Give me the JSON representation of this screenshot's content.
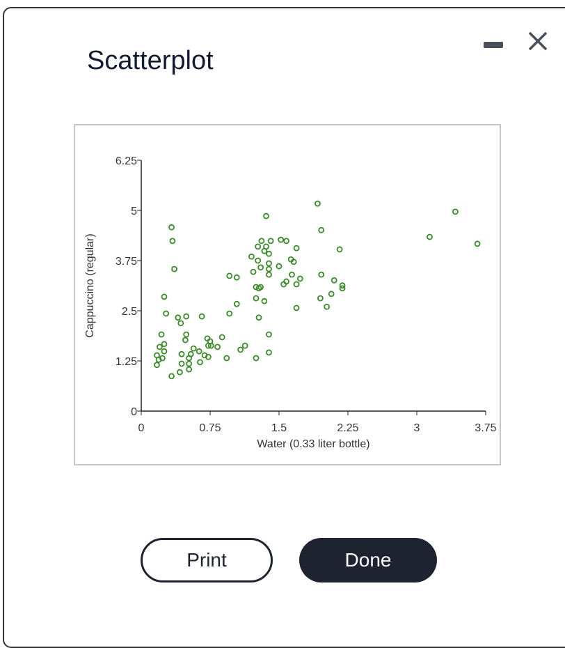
{
  "dialog": {
    "title": "Scatterplot",
    "buttons": [
      "Print",
      "Done"
    ]
  },
  "chart_data": {
    "type": "scatter",
    "x_label": "Water (0.33 liter bottle)",
    "y_label": "Cappuccino (regular)",
    "color": "#3a8a2a",
    "xlim": [
      0,
      3.75
    ],
    "ylim": [
      0,
      6.25
    ],
    "xticks": [
      0,
      0.75,
      1.5,
      2.25,
      3,
      3.75
    ],
    "yticks": [
      0,
      1.25,
      2.5,
      3.75,
      5,
      6.25
    ],
    "x": [
      0.33,
      0.34,
      0.36,
      0.25,
      0.27,
      0.4,
      0.43,
      0.49,
      0.66,
      0.22,
      0.2,
      0.25,
      0.25,
      0.17,
      0.23,
      0.19,
      0.17,
      0.33,
      0.42,
      0.44,
      0.44,
      0.49,
      0.48,
      0.52,
      0.52,
      0.52,
      0.54,
      0.57,
      0.63,
      0.64,
      0.69,
      0.72,
      0.73,
      0.75,
      0.73,
      0.76,
      0.83,
      0.88,
      0.93,
      0.96,
      1.04,
      0.96,
      1.04,
      1.08,
      1.13,
      1.25,
      1.28,
      1.25,
      1.34,
      1.25,
      1.28,
      1.3,
      1.22,
      1.2,
      1.27,
      1.31,
      1.27,
      1.3,
      1.34,
      1.36,
      1.39,
      1.39,
      1.39,
      1.41,
      1.39,
      1.36,
      1.39,
      1.39,
      1.52,
      1.58,
      1.5,
      1.55,
      1.58,
      1.63,
      1.66,
      1.69,
      1.64,
      1.69,
      1.73,
      1.69,
      1.92,
      1.96,
      1.96,
      1.95,
      2.02,
      2.07,
      2.1,
      2.16,
      2.19,
      2.19,
      3.14,
      3.42,
      3.66
    ],
    "values": [
      4.58,
      4.24,
      3.54,
      2.85,
      2.43,
      2.33,
      2.19,
      2.36,
      2.36,
      1.91,
      1.6,
      1.67,
      1.49,
      1.39,
      1.32,
      1.28,
      1.15,
      0.87,
      0.97,
      1.18,
      1.42,
      1.91,
      1.77,
      1.32,
      1.18,
      1.04,
      1.42,
      1.56,
      1.49,
      1.22,
      1.39,
      1.81,
      1.63,
      1.74,
      1.35,
      1.63,
      1.6,
      1.84,
      1.32,
      3.37,
      3.33,
      2.43,
      2.67,
      1.53,
      1.63,
      1.32,
      2.33,
      2.81,
      2.74,
      3.09,
      3.06,
      3.09,
      3.47,
      3.85,
      4.1,
      4.24,
      3.75,
      3.58,
      3.99,
      4.1,
      3.68,
      3.92,
      3.54,
      4.24,
      3.4,
      4.86,
      1.91,
      1.46,
      4.27,
      4.24,
      3.61,
      3.16,
      3.23,
      3.78,
      3.72,
      4.06,
      3.4,
      3.16,
      3.3,
      2.57,
      5.17,
      4.51,
      3.4,
      2.81,
      2.6,
      2.92,
      3.26,
      4.03,
      3.13,
      3.06,
      4.34,
      4.97,
      4.17
    ]
  }
}
